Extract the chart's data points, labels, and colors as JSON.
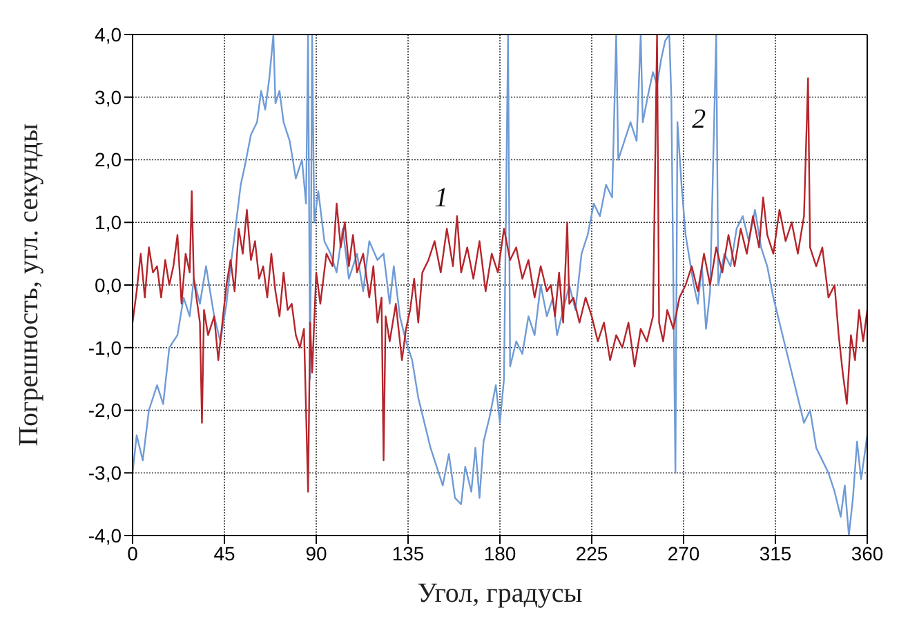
{
  "chart_data": {
    "type": "line",
    "xlabel": "Угол, градусы",
    "ylabel": "Погрешность, угл. секунды",
    "xlim": [
      0,
      360
    ],
    "xticks": [
      0,
      45,
      90,
      135,
      180,
      225,
      270,
      315,
      360
    ],
    "ylim": [
      -4,
      4
    ],
    "yticks": [
      {
        "value": -4,
        "label": "-4,0"
      },
      {
        "value": -3,
        "label": "-3,0"
      },
      {
        "value": -2,
        "label": "-2,0"
      },
      {
        "value": -1,
        "label": "-1,0"
      },
      {
        "value": 0,
        "label": "0,0"
      },
      {
        "value": 1,
        "label": "1,0"
      },
      {
        "value": 2,
        "label": "2,0"
      },
      {
        "value": 3,
        "label": "3,0"
      },
      {
        "value": 4,
        "label": "4,0"
      }
    ],
    "grid": true,
    "line_style": "solid",
    "series": [
      {
        "name": "2",
        "color": "#6f9bd6",
        "x": [
          0,
          2,
          5,
          8,
          12,
          15,
          18,
          22,
          25,
          28,
          30,
          33,
          36,
          40,
          43,
          46,
          48,
          50,
          53,
          55,
          58,
          61,
          63,
          65,
          67,
          69,
          70,
          72,
          74,
          77,
          80,
          83,
          85,
          86,
          87,
          88,
          89,
          91,
          94,
          97,
          100,
          103,
          106,
          110,
          113,
          116,
          120,
          123,
          126,
          128,
          131,
          134,
          137,
          140,
          143,
          146,
          149,
          152,
          155,
          158,
          161,
          163,
          166,
          168,
          170,
          172,
          175,
          178,
          180,
          182,
          184,
          185,
          188,
          191,
          194,
          197,
          200,
          203,
          206,
          208,
          211,
          214,
          217,
          220,
          223,
          226,
          229,
          232,
          235,
          237,
          238,
          241,
          244,
          247,
          249,
          250,
          253,
          255,
          257,
          259,
          261,
          263,
          264,
          266,
          267,
          269,
          271,
          273,
          275,
          277,
          279,
          281,
          283,
          286,
          287,
          290,
          293,
          296,
          299,
          302,
          305,
          308,
          311,
          314,
          317,
          320,
          323,
          326,
          329,
          332,
          335,
          338,
          341,
          344,
          347,
          349,
          351,
          353,
          355,
          357,
          360
        ],
        "values": [
          -3.0,
          -2.4,
          -2.8,
          -2.0,
          -1.6,
          -1.9,
          -1.0,
          -0.8,
          -0.2,
          -0.5,
          0.1,
          -0.3,
          0.3,
          -0.5,
          -0.9,
          -0.3,
          0.3,
          0.8,
          1.6,
          1.9,
          2.4,
          2.6,
          3.1,
          2.8,
          3.3,
          4.0,
          2.9,
          3.1,
          2.6,
          2.3,
          1.7,
          2.0,
          1.3,
          4.0,
          -1.5,
          4.0,
          1.0,
          1.5,
          0.7,
          0.5,
          0.2,
          0.9,
          0.1,
          0.5,
          -0.1,
          0.7,
          0.4,
          0.5,
          -0.3,
          0.3,
          -0.5,
          -0.9,
          -1.2,
          -1.8,
          -2.2,
          -2.6,
          -2.9,
          -3.2,
          -2.7,
          -3.4,
          -3.5,
          -2.9,
          -3.3,
          -2.6,
          -3.4,
          -2.5,
          -2.1,
          -1.6,
          -2.2,
          -1.5,
          4.0,
          -1.3,
          -0.9,
          -1.1,
          -0.5,
          -0.8,
          0.0,
          -0.5,
          -0.2,
          -0.8,
          -0.4,
          0.0,
          -0.4,
          0.5,
          0.8,
          1.3,
          1.1,
          1.6,
          1.4,
          4.0,
          2.0,
          2.3,
          2.6,
          2.3,
          4.0,
          2.6,
          3.1,
          3.4,
          3.2,
          3.6,
          3.9,
          4.0,
          3.0,
          -3.0,
          2.6,
          1.6,
          0.8,
          0.4,
          0.0,
          -0.3,
          0.3,
          -0.7,
          -0.1,
          4.0,
          0.0,
          0.5,
          0.3,
          0.9,
          1.1,
          0.7,
          1.2,
          0.6,
          0.3,
          -0.2,
          -0.6,
          -1.0,
          -1.4,
          -1.8,
          -2.2,
          -2.0,
          -2.6,
          -2.8,
          -3.0,
          -3.3,
          -3.7,
          -3.2,
          -4.0,
          -3.4,
          -2.5,
          -3.1,
          -2.4
        ]
      },
      {
        "name": "1",
        "color": "#b5252b",
        "x": [
          0,
          2,
          4,
          6,
          8,
          10,
          12,
          14,
          16,
          18,
          20,
          22,
          24,
          26,
          28,
          29,
          30,
          33,
          34,
          35,
          37,
          40,
          42,
          44,
          46,
          48,
          50,
          52,
          54,
          56,
          58,
          60,
          62,
          64,
          66,
          68,
          70,
          72,
          74,
          76,
          78,
          80,
          82,
          84,
          86,
          87,
          88,
          90,
          92,
          95,
          98,
          100,
          102,
          104,
          106,
          108,
          110,
          113,
          116,
          118,
          120,
          122,
          123,
          124,
          126,
          129,
          132,
          134,
          136,
          138,
          140,
          142,
          145,
          148,
          151,
          154,
          157,
          159,
          161,
          164,
          167,
          170,
          173,
          176,
          179,
          182,
          185,
          188,
          191,
          194,
          197,
          200,
          203,
          205,
          207,
          209,
          211,
          213,
          214,
          216,
          219,
          222,
          225,
          228,
          231,
          234,
          237,
          240,
          243,
          246,
          249,
          252,
          255,
          257,
          258,
          260,
          262,
          265,
          268,
          271,
          274,
          277,
          280,
          283,
          286,
          289,
          292,
          295,
          298,
          301,
          304,
          307,
          309,
          311,
          314,
          317,
          320,
          323,
          326,
          329,
          331,
          332,
          335,
          338,
          341,
          344,
          346,
          348,
          350,
          352,
          354,
          356,
          358,
          360
        ],
        "values": [
          -0.6,
          -0.1,
          0.5,
          -0.2,
          0.6,
          0.2,
          0.3,
          -0.2,
          0.4,
          0.0,
          0.3,
          0.8,
          -0.3,
          0.5,
          0.2,
          1.5,
          0.1,
          -0.6,
          -2.2,
          -0.4,
          -0.8,
          -0.5,
          -1.2,
          -0.6,
          0.0,
          0.4,
          -0.1,
          0.9,
          0.5,
          1.2,
          0.4,
          0.7,
          0.1,
          0.3,
          -0.2,
          0.5,
          -0.1,
          -0.5,
          0.2,
          -0.4,
          -0.3,
          -0.8,
          -1.0,
          -0.7,
          -3.3,
          -0.6,
          -1.4,
          0.2,
          -0.3,
          0.5,
          0.3,
          1.3,
          0.6,
          1.0,
          0.3,
          0.8,
          0.2,
          0.5,
          -0.2,
          0.3,
          -0.6,
          -0.2,
          -2.8,
          -0.5,
          -0.9,
          -0.3,
          -1.2,
          -0.7,
          -0.4,
          0.1,
          -0.6,
          0.2,
          0.4,
          0.7,
          0.2,
          0.9,
          0.3,
          1.1,
          0.2,
          0.6,
          0.1,
          0.7,
          -0.1,
          0.5,
          0.2,
          0.9,
          0.4,
          0.6,
          0.1,
          0.4,
          -0.2,
          0.3,
          -0.1,
          0.0,
          -0.5,
          0.2,
          -0.6,
          1.0,
          -0.3,
          -0.2,
          -0.6,
          -0.2,
          -0.5,
          -0.9,
          -0.6,
          -1.2,
          -0.8,
          -1.0,
          -0.6,
          -1.3,
          -0.7,
          -0.9,
          -0.5,
          4.0,
          -0.6,
          -0.9,
          -0.4,
          -0.7,
          -0.2,
          0.0,
          0.3,
          -0.1,
          0.5,
          0.0,
          0.6,
          0.2,
          0.8,
          0.3,
          0.9,
          0.5,
          1.1,
          0.6,
          1.4,
          0.8,
          0.5,
          1.2,
          0.7,
          1.0,
          0.5,
          1.1,
          3.3,
          0.6,
          0.3,
          0.6,
          -0.2,
          0.0,
          -0.8,
          -1.4,
          -1.9,
          -0.8,
          -1.2,
          -0.4,
          -0.9,
          -0.4
        ]
      }
    ]
  }
}
